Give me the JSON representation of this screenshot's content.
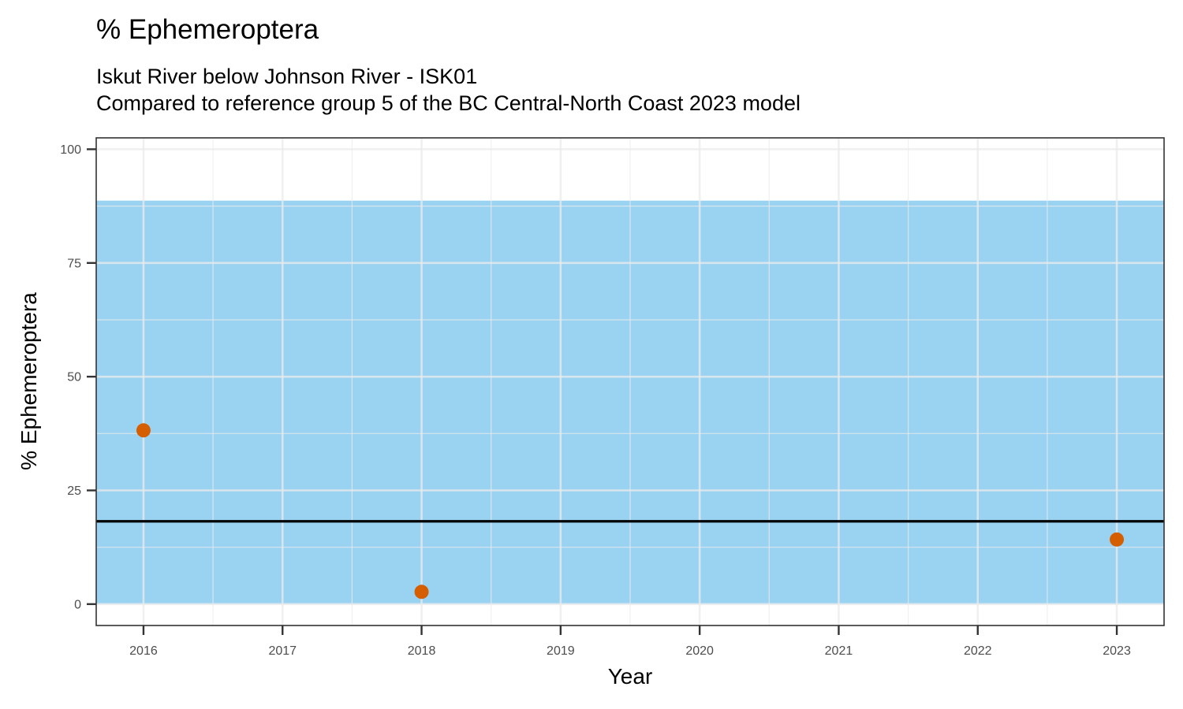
{
  "chart_data": {
    "type": "scatter",
    "title": "% Ephemeroptera",
    "subtitle_lines": [
      "Iskut River below Johnson River - ISK01",
      "Compared to reference group 5 of the BC Central-North Coast 2023 model"
    ],
    "xlabel": "Year",
    "ylabel": "% Ephemeroptera",
    "x_ticks": [
      "2016",
      "2017",
      "2018",
      "2019",
      "2020",
      "2021",
      "2022",
      "2023"
    ],
    "y_ticks": [
      "0",
      "25",
      "50",
      "75",
      "100"
    ],
    "xlim": [
      2015.66,
      2023.34
    ],
    "ylim": [
      -4.7,
      102.5
    ],
    "grid": true,
    "points": [
      {
        "x": 2016,
        "y": 38.2
      },
      {
        "x": 2018,
        "y": 2.7
      },
      {
        "x": 2023,
        "y": 14.2
      }
    ],
    "reference_band": {
      "low": 0,
      "high": 88.7
    },
    "reference_line": 18.2,
    "colors": {
      "points": "#D55E00",
      "band": "#56B4E9",
      "line": "#000000"
    }
  }
}
